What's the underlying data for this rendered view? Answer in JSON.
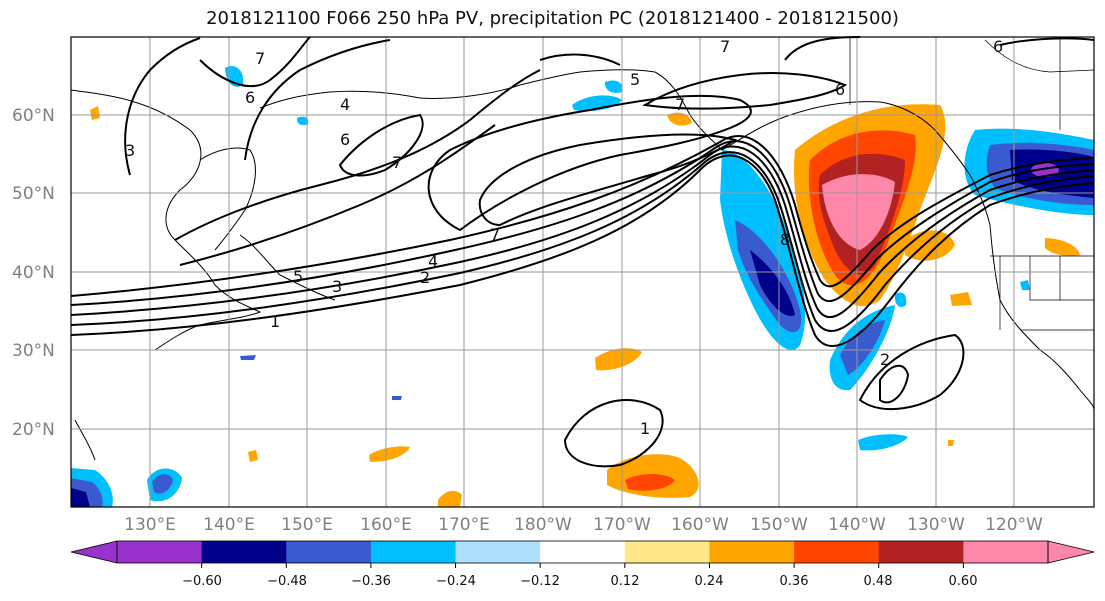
{
  "title": "2018121100 F066 250 hPa PV, precipitation PC (2018121400 - 2018121500)",
  "lat_labels": [
    "60°N",
    "50°N",
    "40°N",
    "30°N",
    "20°N"
  ],
  "lon_labels": [
    "130°E",
    "140°E",
    "150°E",
    "160°E",
    "170°E",
    "180°W",
    "170°W",
    "160°W",
    "150°W",
    "140°W",
    "130°W",
    "120°W"
  ],
  "colorbar": {
    "ticks": [
      "−0.60",
      "−0.48",
      "−0.36",
      "−0.24",
      "−0.12",
      "0.12",
      "0.24",
      "0.36",
      "0.48",
      "0.60"
    ],
    "colors": [
      "#9932cc",
      "#00008b",
      "#3a5bcf",
      "#00bfff",
      "#b0e0ff",
      "#ffffff",
      "#ffe88a",
      "#ffa500",
      "#ff4500",
      "#b22222",
      "#ff88aa",
      "#ff88aa"
    ]
  },
  "contour_labels": [
    "1",
    "1",
    "2",
    "2",
    "3",
    "3",
    "4",
    "4",
    "5",
    "5",
    "6",
    "6",
    "6",
    "6",
    "7",
    "7",
    "7",
    "7",
    "7",
    "8"
  ]
}
